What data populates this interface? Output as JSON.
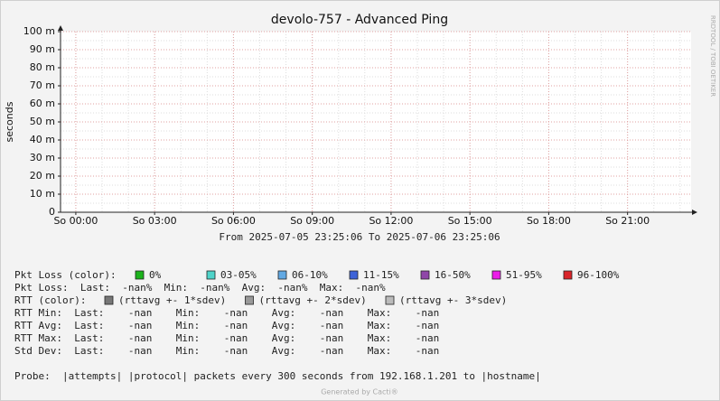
{
  "chart_data": {
    "type": "line",
    "title": "devolo-757 - Advanced Ping",
    "y_label": "seconds",
    "subtitle": "From 2025-07-05 23:25:06 To 2025-07-06 23:25:06",
    "xlim": [
      "2025-07-05 23:25:06",
      "2025-07-06 23:25:06"
    ],
    "xticks": [
      {
        "value": "2025-07-06 00:00",
        "label": "So 00:00"
      },
      {
        "value": "2025-07-06 03:00",
        "label": "So 03:00"
      },
      {
        "value": "2025-07-06 06:00",
        "label": "So 06:00"
      },
      {
        "value": "2025-07-06 09:00",
        "label": "So 09:00"
      },
      {
        "value": "2025-07-06 12:00",
        "label": "So 12:00"
      },
      {
        "value": "2025-07-06 15:00",
        "label": "So 15:00"
      },
      {
        "value": "2025-07-06 18:00",
        "label": "So 18:00"
      },
      {
        "value": "2025-07-06 21:00",
        "label": "So 21:00"
      }
    ],
    "ylim": [
      0,
      0.1
    ],
    "yticks": [
      0,
      {
        "value": 0.01,
        "label": "10 m"
      },
      {
        "value": 0.02,
        "label": "20 m"
      },
      {
        "value": 0.03,
        "label": "30 m"
      },
      {
        "value": 0.04,
        "label": "40 m"
      },
      {
        "value": 0.05,
        "label": "50 m"
      },
      {
        "value": 0.06,
        "label": "60 m"
      },
      {
        "value": 0.07,
        "label": "70 m"
      },
      {
        "value": 0.08,
        "label": "80 m"
      },
      {
        "value": 0.09,
        "label": "90 m"
      },
      {
        "value": 0.1,
        "label": "100 m"
      }
    ],
    "grid": true,
    "grid_color": "#e0a0a0"
  },
  "watermark": "RRDTOOL / TOBI OETIKER",
  "legend": {
    "loss_label": "Pkt Loss (color):",
    "loss_items": [
      {
        "label": "0%",
        "color": "#1db31d"
      },
      {
        "label": "03-05%",
        "color": "#4fd3c9"
      },
      {
        "label": "06-10%",
        "color": "#62a9e3"
      },
      {
        "label": "11-15%",
        "color": "#3e63d8"
      },
      {
        "label": "16-50%",
        "color": "#8f46a8"
      },
      {
        "label": "51-95%",
        "color": "#ec1de8"
      },
      {
        "label": "96-100%",
        "color": "#d9242a"
      }
    ],
    "loss_stats": "Pkt Loss:  Last:  -nan%  Min:  -nan%  Avg:  -nan%  Max:  -nan%",
    "rtt_label": "RTT (color):",
    "rtt_items": [
      {
        "label": "(rttavg +- 1*sdev)",
        "color": "#777777"
      },
      {
        "label": "(rttavg +- 2*sdev)",
        "color": "#999999"
      },
      {
        "label": "(rttavg +- 3*sdev)",
        "color": "#bbbbbb"
      }
    ],
    "stats": [
      "RTT Min:  Last:    -nan    Min:    -nan    Avg:    -nan    Max:    -nan",
      "RTT Avg:  Last:    -nan    Min:    -nan    Avg:    -nan    Max:    -nan",
      "RTT Max:  Last:    -nan    Min:    -nan    Avg:    -nan    Max:    -nan",
      "Std Dev:  Last:    -nan    Min:    -nan    Avg:    -nan    Max:    -nan"
    ],
    "probe": "Probe:  |attempts| |protocol| packets every 300 seconds from 192.168.1.201 to |hostname|"
  },
  "footer": "Generated by Cacti®"
}
